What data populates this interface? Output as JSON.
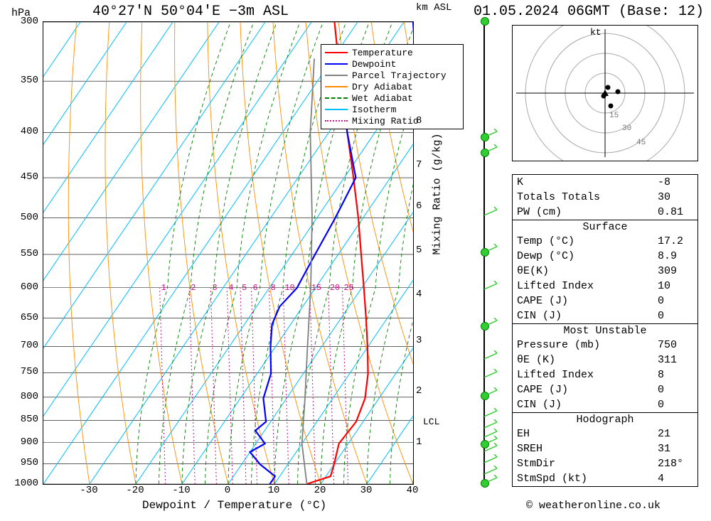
{
  "header": {
    "location": "40°27'N 50°04'E −3m ASL",
    "datetime": "01.05.2024 06GMT (Base: 12)"
  },
  "axes": {
    "left_unit": "hPa",
    "right_unit": "km\nASL",
    "x_label": "Dewpoint / Temperature (°C)",
    "mixing_label": "Mixing Ratio (g/kg)",
    "lcl": "LCL",
    "hodo_unit": "kt"
  },
  "legend": [
    {
      "label": "Temperature",
      "color": "#ff0000",
      "style": "solid"
    },
    {
      "label": "Dewpoint",
      "color": "#0000ff",
      "style": "solid"
    },
    {
      "label": "Parcel Trajectory",
      "color": "#808080",
      "style": "solid"
    },
    {
      "label": "Dry Adiabat",
      "color": "#ff8c00",
      "style": "solid"
    },
    {
      "label": "Wet Adiabat",
      "color": "#008000",
      "style": "dashed"
    },
    {
      "label": "Isotherm",
      "color": "#00bfff",
      "style": "solid"
    },
    {
      "label": "Mixing Ratio",
      "color": "#c71585",
      "style": "dotted"
    }
  ],
  "pressure_levels": [
    300,
    350,
    400,
    450,
    500,
    550,
    600,
    650,
    700,
    750,
    800,
    850,
    900,
    950,
    1000
  ],
  "pressure_y": {
    "300": 0,
    "350": 12.8,
    "400": 23.9,
    "450": 33.7,
    "500": 42.4,
    "550": 50.3,
    "600": 57.5,
    "650": 64.1,
    "700": 70.2,
    "750": 75.9,
    "800": 81.2,
    "850": 86.2,
    "900": 91.0,
    "950": 95.6,
    "1000": 100
  },
  "x_ticks": [
    -30,
    -20,
    -10,
    0,
    10,
    20,
    30,
    40
  ],
  "x_range": [
    -40,
    40
  ],
  "km_levels": [
    {
      "km": "1",
      "y": 91
    },
    {
      "km": "2",
      "y": 80
    },
    {
      "km": "3",
      "y": 69
    },
    {
      "km": "4",
      "y": 59
    },
    {
      "km": "5",
      "y": 49.5
    },
    {
      "km": "6",
      "y": 40
    },
    {
      "km": "7",
      "y": 31
    },
    {
      "km": "8",
      "y": 21.5
    }
  ],
  "mixing_ratios": [
    {
      "label": "1",
      "x": 33
    },
    {
      "label": "2",
      "x": 41
    },
    {
      "label": "3",
      "x": 46.8
    },
    {
      "label": "4",
      "x": 51.2
    },
    {
      "label": "5",
      "x": 54.8
    },
    {
      "label": "6",
      "x": 57.8
    },
    {
      "label": "8",
      "x": 62.6
    },
    {
      "label": "10",
      "x": 66.4
    },
    {
      "label": "15",
      "x": 73.6
    },
    {
      "label": "20",
      "x": 78.6
    },
    {
      "label": "25",
      "x": 82.4
    }
  ],
  "temperature": [
    {
      "p": 1000,
      "t": 17
    },
    {
      "p": 980,
      "t": 21
    },
    {
      "p": 950,
      "t": 20
    },
    {
      "p": 900,
      "t": 18
    },
    {
      "p": 850,
      "t": 18.5
    },
    {
      "p": 800,
      "t": 17
    },
    {
      "p": 750,
      "t": 14
    },
    {
      "p": 700,
      "t": 10
    },
    {
      "p": 650,
      "t": 5.5
    },
    {
      "p": 600,
      "t": 0.5
    },
    {
      "p": 550,
      "t": -5
    },
    {
      "p": 500,
      "t": -11
    },
    {
      "p": 450,
      "t": -18
    },
    {
      "p": 400,
      "t": -26
    },
    {
      "p": 350,
      "t": -35
    },
    {
      "p": 300,
      "t": -45
    }
  ],
  "dewpoint": [
    {
      "p": 1000,
      "t": 9
    },
    {
      "p": 980,
      "t": 9
    },
    {
      "p": 950,
      "t": 4
    },
    {
      "p": 920,
      "t": 0
    },
    {
      "p": 900,
      "t": 2
    },
    {
      "p": 870,
      "t": -2
    },
    {
      "p": 850,
      "t": -1
    },
    {
      "p": 800,
      "t": -5
    },
    {
      "p": 750,
      "t": -7
    },
    {
      "p": 700,
      "t": -11
    },
    {
      "p": 660,
      "t": -14
    },
    {
      "p": 630,
      "t": -15
    },
    {
      "p": 600,
      "t": -14
    },
    {
      "p": 550,
      "t": -15
    },
    {
      "p": 500,
      "t": -16
    },
    {
      "p": 450,
      "t": -17.5
    },
    {
      "p": 400,
      "t": -26
    },
    {
      "p": 350,
      "t": -35
    },
    {
      "p": 320,
      "t": -24
    },
    {
      "p": 300,
      "t": -28
    }
  ],
  "parcel": [
    {
      "p": 1000,
      "t": 17
    },
    {
      "p": 900,
      "t": 10
    },
    {
      "p": 800,
      "t": 4
    },
    {
      "p": 700,
      "t": -3
    },
    {
      "p": 600,
      "t": -11
    },
    {
      "p": 500,
      "t": -21
    },
    {
      "p": 400,
      "t": -34
    },
    {
      "p": 330,
      "t": -44
    }
  ],
  "wind_positions": [
    25,
    28.5,
    42,
    50,
    58,
    66,
    73,
    77,
    81,
    85.5,
    88,
    90,
    91.5,
    93,
    95.5,
    98,
    100
  ],
  "wind_dots": [
    0,
    25,
    28.5,
    50,
    66,
    81,
    91.5,
    100
  ],
  "indices": {
    "top": [
      {
        "k": "K",
        "v": "-8"
      },
      {
        "k": "Totals Totals",
        "v": "30"
      },
      {
        "k": "PW (cm)",
        "v": "0.81"
      }
    ],
    "surface_title": "Surface",
    "surface": [
      {
        "k": "Temp (°C)",
        "v": "17.2"
      },
      {
        "k": "Dewp (°C)",
        "v": "8.9"
      },
      {
        "k": "θE(K)",
        "v": "309"
      },
      {
        "k": "Lifted Index",
        "v": "10"
      },
      {
        "k": "CAPE (J)",
        "v": "0"
      },
      {
        "k": "CIN (J)",
        "v": "0"
      }
    ],
    "unstable_title": "Most Unstable",
    "unstable": [
      {
        "k": "Pressure (mb)",
        "v": "750"
      },
      {
        "k": "θE (K)",
        "v": "311"
      },
      {
        "k": "Lifted Index",
        "v": "8"
      },
      {
        "k": "CAPE (J)",
        "v": "0"
      },
      {
        "k": "CIN (J)",
        "v": "0"
      }
    ],
    "hodo_title": "Hodograph",
    "hodo": [
      {
        "k": "EH",
        "v": "21"
      },
      {
        "k": "SREH",
        "v": "31"
      },
      {
        "k": "StmDir",
        "v": "218°"
      },
      {
        "k": "StmSpd (kt)",
        "v": "4"
      }
    ]
  },
  "copyright": "© weatheronline.co.uk",
  "colors": {
    "temperature": "#ff0000",
    "dewpoint": "#0000ff",
    "parcel": "#808080",
    "dry_adiabat": "#ff8c00",
    "wet_adiabat": "#008000",
    "isotherm": "#00bfff",
    "mixing": "#c71585",
    "grid": "#000000",
    "wind": "#32cd32",
    "bg": "#ffffff"
  }
}
